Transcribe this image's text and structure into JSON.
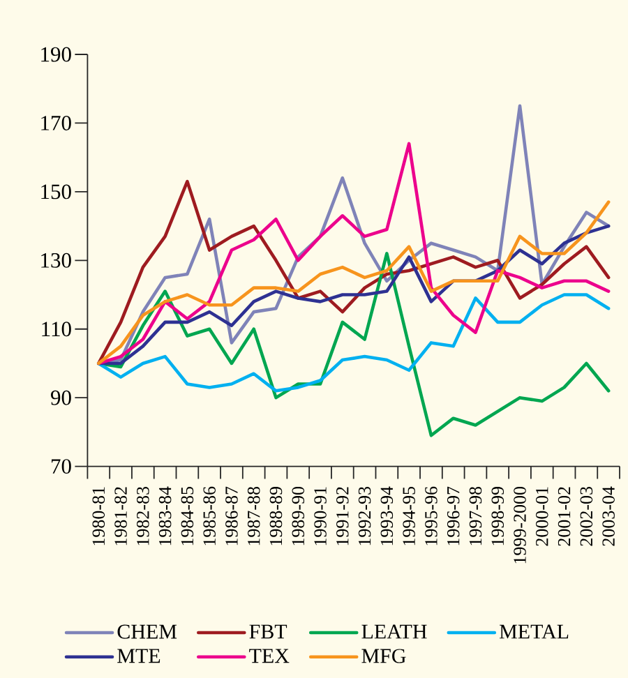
{
  "chart_data": {
    "type": "line",
    "categories": [
      "1980-81",
      "1981-82",
      "1982-83",
      "1983-84",
      "1984-85",
      "1985-86",
      "1986-87",
      "1987-88",
      "1988-89",
      "1989-90",
      "1990-91",
      "1991-92",
      "1992-93",
      "1993-94",
      "1994-95",
      "1995-96",
      "1996-97",
      "1997-98",
      "1998-99",
      "1999-2000",
      "2000-01",
      "2001-02",
      "2002-03",
      "2003-04"
    ],
    "series": [
      {
        "name": "CHEM",
        "color": "#7f83b8",
        "values": [
          100,
          101,
          115,
          125,
          126,
          142,
          106,
          115,
          116,
          131,
          137,
          154,
          135,
          124,
          130,
          135,
          133,
          131,
          127,
          175,
          123,
          134,
          144,
          140
        ]
      },
      {
        "name": "FBT",
        "color": "#9e1b20",
        "values": [
          100,
          112,
          128,
          137,
          153,
          133,
          137,
          140,
          130,
          119,
          121,
          115,
          122,
          126,
          127,
          129,
          131,
          128,
          130,
          119,
          123,
          129,
          134,
          125
        ]
      },
      {
        "name": "LEATH",
        "color": "#00a650",
        "values": [
          100,
          99,
          111,
          121,
          108,
          110,
          100,
          110,
          90,
          94,
          94,
          112,
          107,
          132,
          105,
          79,
          84,
          82,
          86,
          90,
          89,
          93,
          100,
          92
        ]
      },
      {
        "name": "METAL",
        "color": "#00b0f0",
        "values": [
          100,
          96,
          100,
          102,
          94,
          93,
          94,
          97,
          92,
          93,
          95,
          101,
          102,
          101,
          98,
          106,
          105,
          119,
          112,
          112,
          117,
          120,
          120,
          116
        ]
      },
      {
        "name": "MTE",
        "color": "#2e3192",
        "values": [
          100,
          100,
          105,
          112,
          112,
          115,
          111,
          118,
          121,
          119,
          118,
          120,
          120,
          121,
          131,
          118,
          124,
          124,
          127,
          133,
          129,
          135,
          138,
          140
        ]
      },
      {
        "name": "TEX",
        "color": "#ec008c",
        "values": [
          100,
          102,
          107,
          118,
          113,
          118,
          133,
          136,
          142,
          130,
          137,
          143,
          137,
          139,
          164,
          122,
          114,
          109,
          127,
          125,
          122,
          124,
          124,
          121
        ]
      },
      {
        "name": "MFG",
        "color": "#f7941d",
        "values": [
          100,
          105,
          114,
          118,
          120,
          117,
          117,
          122,
          122,
          121,
          126,
          128,
          125,
          127,
          134,
          121,
          124,
          124,
          124,
          137,
          132,
          132,
          138,
          147
        ]
      }
    ],
    "ylim": [
      70,
      190
    ],
    "yticks": [
      70,
      90,
      110,
      130,
      150,
      170,
      190
    ],
    "legend": "bottom"
  }
}
